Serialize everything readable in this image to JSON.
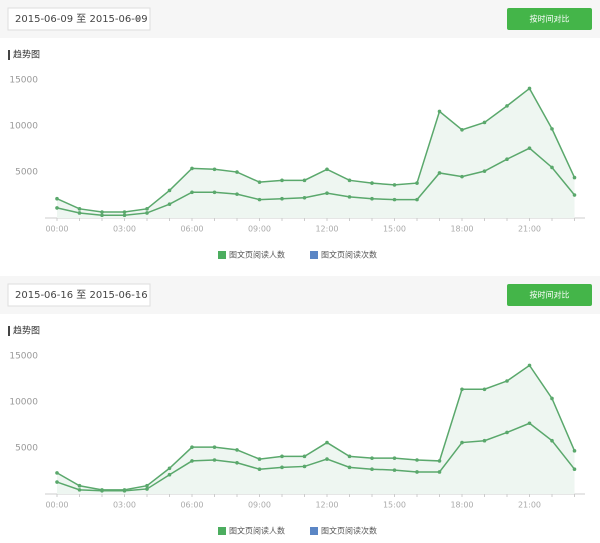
{
  "chart_data": [
    {
      "type": "line",
      "date_range": "2015-06-09 至 2015-06-09",
      "button_label": "按时间对比",
      "title": "趋势图",
      "categories": [
        "00:00",
        null,
        null,
        "03:00",
        null,
        null,
        "06:00",
        null,
        null,
        "09:00",
        null,
        null,
        "12:00",
        null,
        null,
        "15:00",
        null,
        null,
        "18:00",
        null,
        null,
        "21:00",
        null,
        null
      ],
      "series": [
        {
          "name": "图文页阅读人数",
          "color": "#4cad5f",
          "values": [
            1100,
            550,
            300,
            300,
            550,
            1500,
            2800,
            2800,
            2600,
            2000,
            2100,
            2200,
            2700,
            2300,
            2100,
            2000,
            2000,
            4900,
            4500,
            5100,
            6400,
            7600,
            5500,
            2500
          ]
        },
        {
          "name": "图文页阅读次数",
          "color": "#5b86c5",
          "values": [
            2100,
            1000,
            650,
            650,
            1000,
            3000,
            5400,
            5300,
            5000,
            3900,
            4100,
            4100,
            5300,
            4100,
            3800,
            3600,
            3800,
            11600,
            9600,
            10400,
            12200,
            14100,
            9700,
            4400
          ]
        }
      ],
      "line_color": "#5aa86c",
      "area_color": "#eef6f1",
      "ylim": [
        0,
        16000
      ],
      "yticks": [
        5000,
        10000,
        15000
      ]
    },
    {
      "type": "line",
      "date_range": "2015-06-16 至 2015-06-16",
      "button_label": "按时间对比",
      "title": "趋势图",
      "categories": [
        "00:00",
        null,
        null,
        "03:00",
        null,
        null,
        "06:00",
        null,
        null,
        "09:00",
        null,
        null,
        "12:00",
        null,
        null,
        "15:00",
        null,
        null,
        "18:00",
        null,
        null,
        "21:00",
        null,
        null
      ],
      "series": [
        {
          "name": "图文页阅读人数",
          "color": "#4cad5f",
          "values": [
            1300,
            450,
            350,
            350,
            550,
            2100,
            3600,
            3700,
            3400,
            2700,
            2900,
            3000,
            3800,
            2900,
            2700,
            2600,
            2400,
            2400,
            5600,
            5800,
            6700,
            7700,
            5800,
            2700
          ]
        },
        {
          "name": "图文页阅读次数",
          "color": "#5b86c5",
          "values": [
            2300,
            900,
            450,
            450,
            900,
            2800,
            5100,
            5100,
            4800,
            3800,
            4100,
            4100,
            5600,
            4100,
            3900,
            3900,
            3700,
            3600,
            11400,
            11400,
            12300,
            14000,
            10400,
            4700
          ]
        }
      ],
      "line_color": "#5aa86c",
      "area_color": "#eef6f1",
      "ylim": [
        0,
        16000
      ],
      "yticks": [
        5000,
        10000,
        15000
      ]
    }
  ]
}
